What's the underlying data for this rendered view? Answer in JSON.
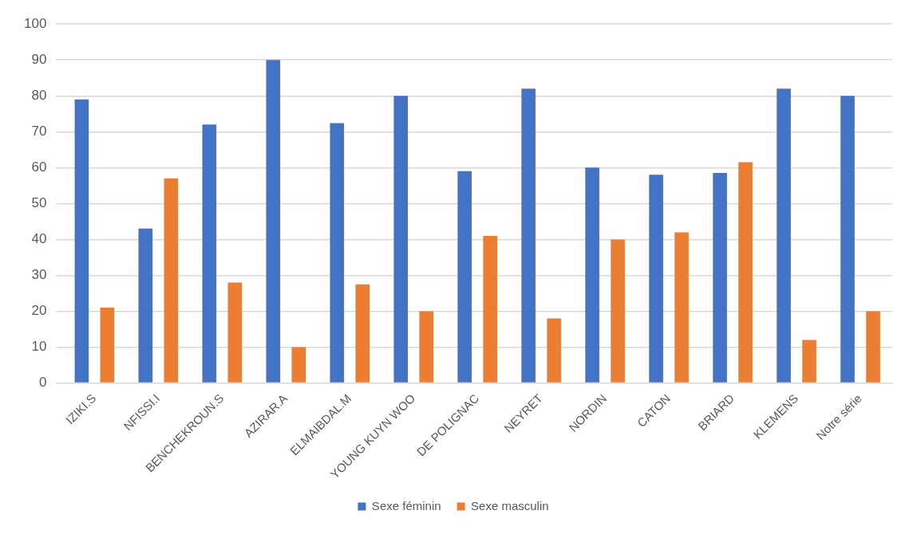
{
  "chart_data": {
    "type": "bar",
    "categories": [
      "IZIKI.S",
      "NFISSI.I",
      "BENCHEKROUN.S",
      "AZIRAR.A",
      "ELMAIBDAL.M",
      "YOUNG KUYN WOO",
      "DE POLIGNAC",
      "NEYRET",
      "NORDIN",
      "CATON",
      "BRIARD",
      "KLEMENS",
      "Notre série"
    ],
    "series": [
      {
        "name": "Sexe féminin",
        "color": "#4472c4",
        "values": [
          79,
          43,
          72,
          90,
          72.4,
          80,
          59,
          82,
          60,
          58,
          58.5,
          82,
          80
        ]
      },
      {
        "name": "Sexe masculin",
        "color": "#ed7d31",
        "values": [
          21,
          57,
          28,
          10,
          27.5,
          20,
          41,
          18,
          40,
          42,
          61.5,
          12,
          20
        ]
      }
    ],
    "ylim": [
      0,
      100
    ],
    "yticks": [
      0,
      10,
      20,
      30,
      40,
      50,
      60,
      70,
      80,
      90,
      100
    ],
    "grid": "y",
    "legend": "bottom"
  }
}
